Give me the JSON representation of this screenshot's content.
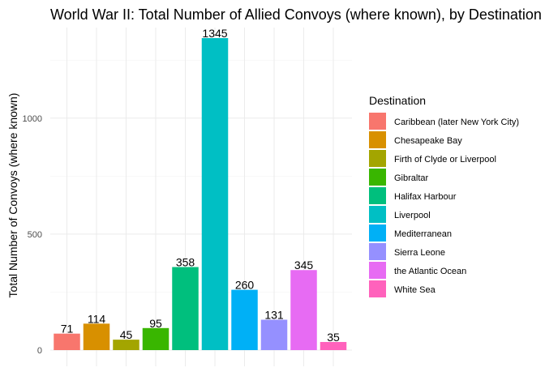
{
  "chart_data": {
    "type": "bar",
    "title": "World War II: Total Number of Allied Convoys (where known), by Destination",
    "xlabel": "",
    "ylabel": "Total Number of Convoys (where known)",
    "categories": [
      "Caribbean (later New York City)",
      "Chesapeake Bay",
      "Firth of Clyde or Liverpool",
      "Gibraltar",
      "Halifax Harbour",
      "Liverpool",
      "Mediterranean",
      "Sierra Leone",
      "the Atlantic Ocean",
      "White Sea"
    ],
    "values": [
      71,
      114,
      45,
      95,
      358,
      1345,
      260,
      131,
      345,
      35
    ],
    "colors": [
      "#F8766D",
      "#D89000",
      "#A3A500",
      "#39B600",
      "#00BF7D",
      "#00BFC4",
      "#00B0F6",
      "#9590FF",
      "#E76BF3",
      "#FF62BC"
    ],
    "ylim": [
      0,
      1400
    ],
    "y_ticks": [
      0,
      500,
      1000
    ],
    "grid": true,
    "legend": {
      "title": "Destination",
      "position": "right"
    }
  }
}
